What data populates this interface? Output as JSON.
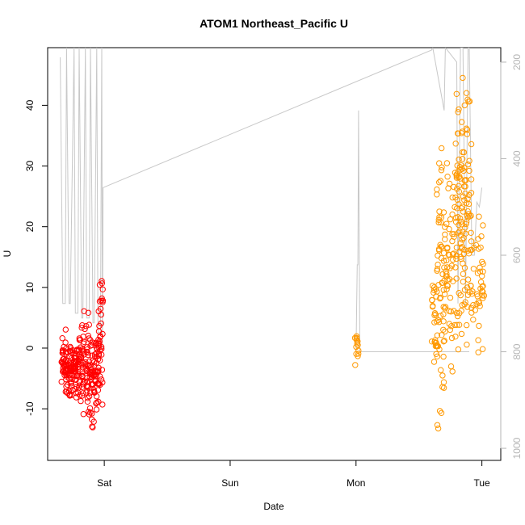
{
  "chart_data": {
    "type": "scatter",
    "title": "ATOM1 Northeast_Pacific U",
    "xlabel": "Date",
    "ylabel": "U",
    "x_ticks": [
      {
        "label": "Sat",
        "day": 1
      },
      {
        "label": "Sun",
        "day": 2
      },
      {
        "label": "Mon",
        "day": 3
      },
      {
        "label": "Tue",
        "day": 4
      }
    ],
    "xlim": [
      0.55,
      4.15
    ],
    "y_ticks": [
      -10,
      0,
      10,
      20,
      30,
      40
    ],
    "ylim": [
      -18.5,
      49.5
    ],
    "y2_ticks": [
      200,
      400,
      600,
      800,
      1000
    ],
    "y2lim": [
      1025,
      170
    ],
    "grid": false,
    "colors": {
      "series_a": "#ff0000",
      "series_b": "#ff9900",
      "overlay_line": "#c8c8c8",
      "right_axis": "#b5b5b5"
    },
    "series": [
      {
        "cluster_generator": "a",
        "clusters": [
          {
            "x_min": 0.66,
            "x_max": 0.7,
            "y_min": -9.5,
            "y_max": 4.5,
            "n": 40
          },
          {
            "x_min": 0.7,
            "x_max": 0.8,
            "y_min": -9.0,
            "y_max": 2.0,
            "n": 90
          },
          {
            "x_min": 0.8,
            "x_max": 0.88,
            "y_min": -12.0,
            "y_max": 6.5,
            "n": 70
          },
          {
            "x_min": 0.88,
            "x_max": 0.96,
            "y_min": -11.5,
            "y_max": 3.5,
            "n": 70
          },
          {
            "x_min": 0.9,
            "x_max": 0.92,
            "y_min": -14.5,
            "y_max": -11.0,
            "n": 4
          },
          {
            "x_min": 0.955,
            "x_max": 0.99,
            "y_min": -10.0,
            "y_max": 13.0,
            "n": 35
          }
        ]
      },
      {
        "cluster_generator": "b",
        "clusters": [
          {
            "x_min": 2.99,
            "x_max": 3.02,
            "y_min": -3.8,
            "y_max": 4.5,
            "n": 14
          },
          {
            "x_min": 3.6,
            "x_max": 3.64,
            "y_min": -4.5,
            "y_max": 15.0,
            "n": 22
          },
          {
            "x_min": 3.64,
            "x_max": 3.71,
            "y_min": -16.0,
            "y_max": 38.0,
            "n": 70
          },
          {
            "x_min": 3.71,
            "x_max": 3.79,
            "y_min": -7.0,
            "y_max": 35.0,
            "n": 50
          },
          {
            "x_min": 3.79,
            "x_max": 3.86,
            "y_min": -3.0,
            "y_max": 47.0,
            "n": 80
          },
          {
            "x_min": 3.86,
            "x_max": 3.92,
            "y_min": -3.0,
            "y_max": 47.0,
            "n": 55
          },
          {
            "x_min": 3.92,
            "x_max": 4.02,
            "y_min": -1.5,
            "y_max": 23.5,
            "n": 40
          }
        ]
      }
    ],
    "overlay_line": {
      "axis": "right",
      "x": [
        0.65,
        0.67,
        0.69,
        0.7,
        0.72,
        0.73,
        0.76,
        0.77,
        0.79,
        0.8,
        0.82,
        0.83,
        0.85,
        0.86,
        0.88,
        0.89,
        0.91,
        0.92,
        0.94,
        0.95,
        0.97,
        0.98,
        0.985,
        0.99,
        3.6,
        3.61,
        3.7,
        3.71,
        3.8,
        3.81,
        3.83,
        3.85,
        3.87,
        3.89,
        3.9,
        3.92,
        3.94,
        3.96,
        3.98,
        4.0
      ],
      "y": [
        190,
        700,
        700,
        170,
        700,
        700,
        170,
        720,
        720,
        170,
        730,
        730,
        170,
        730,
        730,
        170,
        740,
        740,
        170,
        760,
        760,
        170,
        800,
        460,
        175,
        170,
        300,
        170,
        200,
        700,
        170,
        170,
        700,
        170,
        170,
        600,
        600,
        490,
        500,
        460
      ],
      "extra_segments": [
        {
          "x": [
            3.0,
            3.01,
            3.015,
            3.02,
            3.03,
            3.6,
            3.85,
            3.9
          ],
          "y": [
            800,
            620,
            620,
            300,
            800,
            800,
            800,
            800
          ]
        }
      ]
    }
  }
}
